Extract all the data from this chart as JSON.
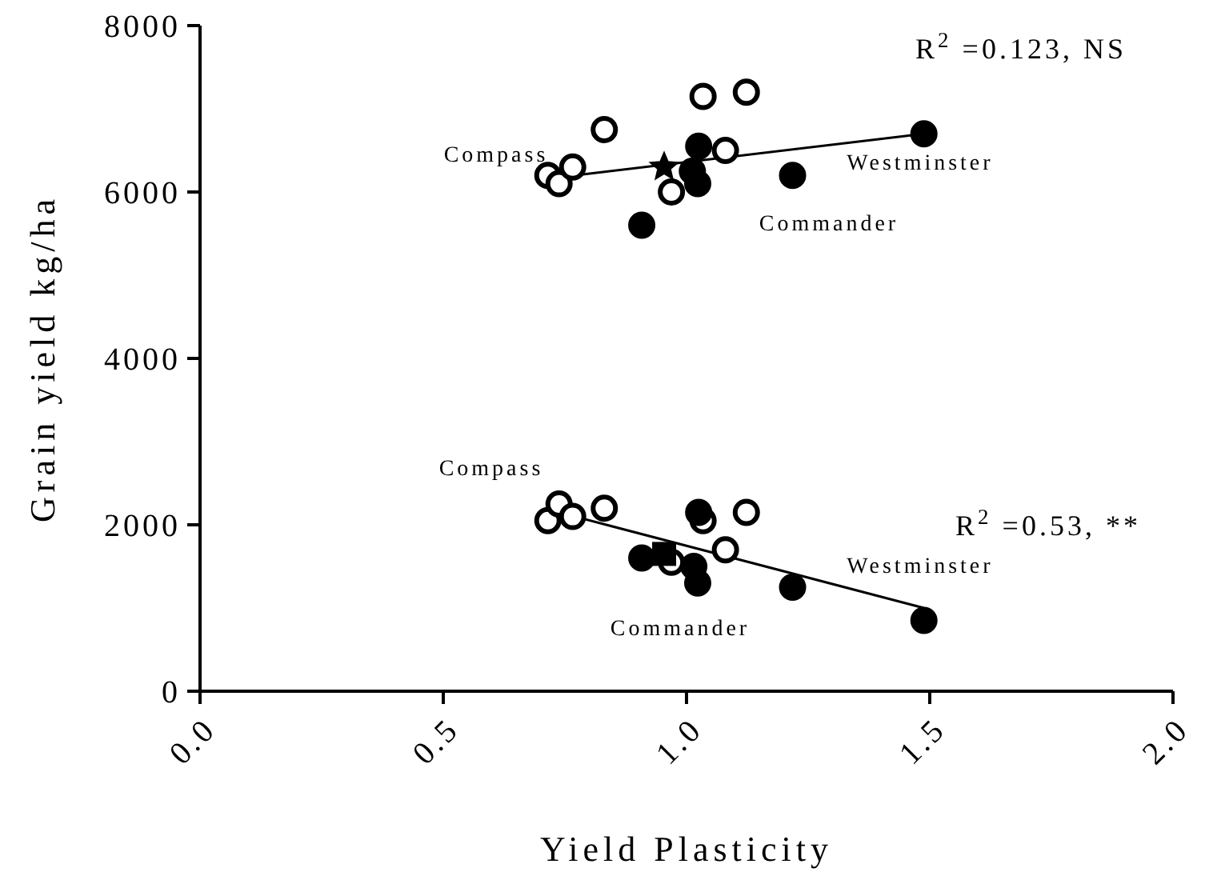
{
  "chart_data": {
    "type": "scatter",
    "xlabel": "Yield Plasticity",
    "ylabel": "Grain yield kg/ha",
    "xlim": [
      0,
      2
    ],
    "xticks": [
      {
        "value": 0,
        "label": "0.0"
      },
      {
        "value": 0.5,
        "label": "0.5"
      },
      {
        "value": 1,
        "label": "1.0"
      },
      {
        "value": 1.5,
        "label": "1.5"
      },
      {
        "value": 2,
        "label": "2.0"
      }
    ],
    "ylim": [
      0,
      8000
    ],
    "yticks": [
      0,
      2000,
      4000,
      6000,
      8000
    ],
    "series": [
      {
        "color": "#ffffff",
        "marker": "circle",
        "x": [
          0.715,
          0.738,
          0.766,
          0.831,
          0.969,
          1.034,
          1.123,
          1.08,
          0.715,
          0.738,
          0.766,
          0.831,
          0.969,
          1.034,
          1.123,
          1.08
        ],
        "values": [
          6200,
          6100,
          6300,
          6750,
          6000,
          7150,
          7200,
          6500,
          2050,
          2250,
          2100,
          2200,
          1550,
          2050,
          2150,
          1700
        ]
      },
      {
        "color": "#000000",
        "marker": "circle",
        "x": [
          0.908,
          1.025,
          1.012,
          1.023,
          1.218,
          1.488,
          0.908,
          1.025,
          1.015,
          1.023,
          1.218,
          1.488
        ],
        "values": [
          5600,
          6550,
          6250,
          6100,
          6200,
          6700,
          1600,
          2150,
          1500,
          1300,
          1250,
          850
        ]
      },
      {
        "color": "#000000",
        "marker": "star",
        "x": [
          0.954
        ],
        "values": [
          6300
        ]
      },
      {
        "color": "#000000",
        "marker": "square",
        "x": [
          0.954
        ],
        "values": [
          1650
        ]
      },
      {
        "type": "line",
        "color": "#000000",
        "marker": "none",
        "x": [
          0.77,
          1.488
        ],
        "values": [
          6200,
          6700
        ]
      },
      {
        "type": "line",
        "color": "#000000",
        "marker": "none",
        "x": [
          0.77,
          1.488
        ],
        "values": [
          2100,
          1000
        ]
      }
    ],
    "annotations": [
      "R$^{2}$ =0.123,  NS",
      "R$^{2}$ =0.53,  **",
      "Compass",
      "Westminster",
      "Commander",
      "Compass",
      "Westminster",
      "Commander"
    ]
  }
}
